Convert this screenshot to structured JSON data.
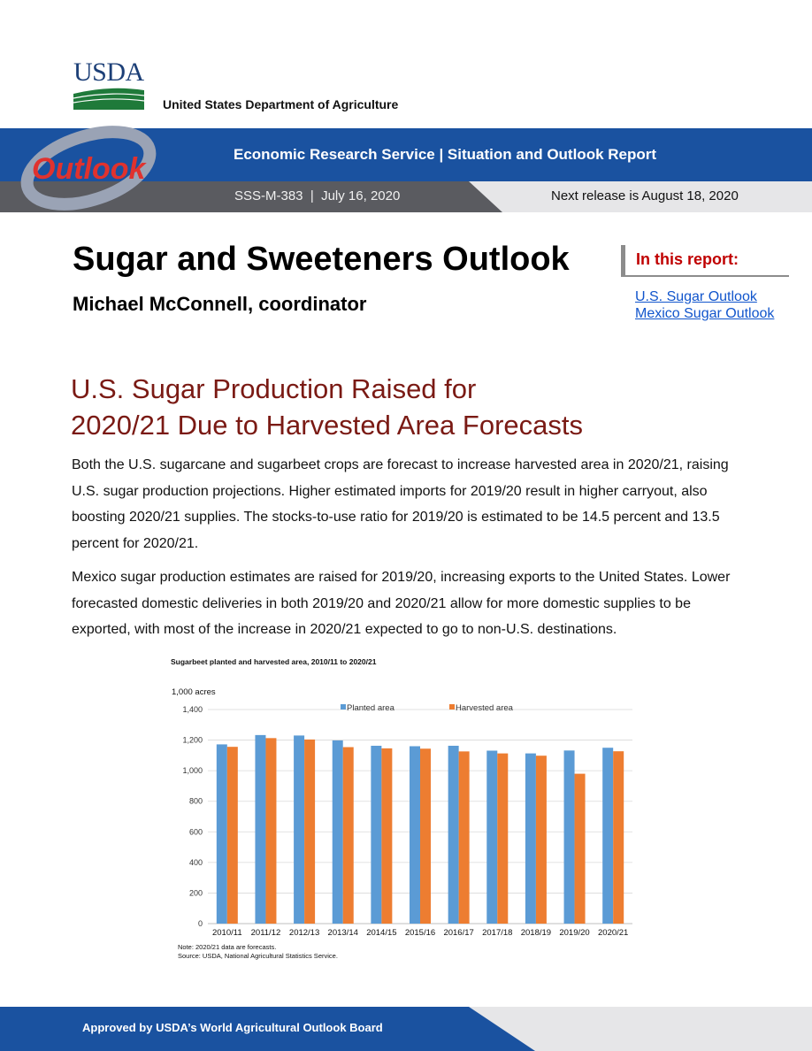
{
  "header": {
    "logo_text": "USDA",
    "department": "United States Department of Agriculture",
    "outlook_logo_text": "Outlook",
    "banner_title": "Economic Research Service | Situation and Outlook Report",
    "report_meta": "SSS-M-383  |  July 16, 2020",
    "next_release": "Next release is August 18, 2020"
  },
  "title": {
    "main": "Sugar and Sweeteners Outlook",
    "coordinator": "Michael McConnell, coordinator"
  },
  "in_this_report": {
    "label": "In this report:",
    "links": [
      "U.S. Sugar Outlook",
      "Mexico Sugar Outlook"
    ]
  },
  "headline": {
    "line1": "U.S. Sugar Production Raised for",
    "line2": "2020/21 Due to Harvested Area Forecasts"
  },
  "body": {
    "para1": "Both the U.S. sugarcane and sugarbeet crops are forecast to increase harvested area in 2020/21, raising U.S. sugar production projections. Higher estimated imports for 2019/20 result in higher carryout, also boosting 2020/21 supplies. The stocks-to-use ratio for 2019/20 is estimated to be 14.5 percent and 13.5 percent for 2020/21.",
    "para2": "Mexico sugar production estimates are raised for 2019/20, increasing exports to the United States. Lower forecasted domestic deliveries in both 2019/20 and 2020/21 allow for more domestic supplies to be exported, with most of the increase in 2020/21 expected to go to non-U.S. destinations."
  },
  "chart_data": {
    "type": "bar",
    "title": "Sugarbeet planted and harvested area, 2010/11 to 2020/21",
    "ylabel": "1,000 acres",
    "xlabel": "",
    "ylim": [
      0,
      1400
    ],
    "yticks": [
      0,
      200,
      400,
      600,
      800,
      1000,
      1200,
      1400
    ],
    "ytick_labels": [
      "0",
      "200",
      "400",
      "600",
      "800",
      "1,000",
      "1,200",
      "1,400"
    ],
    "categories": [
      "2010/11",
      "2011/12",
      "2012/13",
      "2013/14",
      "2014/15",
      "2015/16",
      "2016/17",
      "2017/18",
      "2018/19",
      "2019/20",
      "2020/21"
    ],
    "series": [
      {
        "name": "Planted area",
        "color": "#5b9bd5",
        "values": [
          1172,
          1233,
          1230,
          1198,
          1163,
          1160,
          1163,
          1131,
          1113,
          1132,
          1150
        ]
      },
      {
        "name": "Harvested area",
        "color": "#ed7d31",
        "values": [
          1156,
          1213,
          1204,
          1154,
          1146,
          1144,
          1126,
          1113,
          1098,
          980,
          1127
        ]
      }
    ],
    "grid": true,
    "legend": "top",
    "note": "Note: 2020/21 data are forecasts.",
    "source": "Source: USDA, National Agricultural Statistics Service."
  },
  "footer": {
    "text": "Approved by USDA’s World Agricultural Outlook Board"
  },
  "colors": {
    "usda_blue": "#1a52a0",
    "headline_red": "#7a1a14",
    "accent_red": "#c00000",
    "link_blue": "#1155cc"
  }
}
